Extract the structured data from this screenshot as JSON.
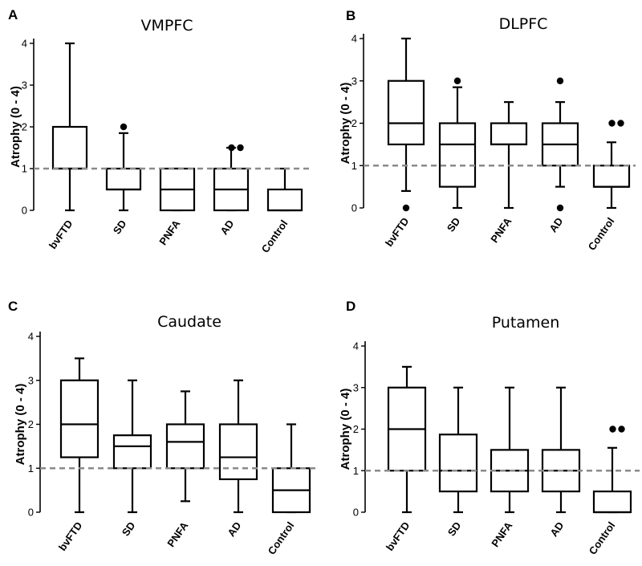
{
  "chart_data": [
    {
      "type": "box",
      "panel_label": "A",
      "title": "VMPFC",
      "ylabel": "Atrophy (0 - 4)",
      "ylim": [
        0,
        4
      ],
      "yticks": [
        "0",
        "1",
        "2",
        "3",
        "4"
      ],
      "reference_line": 1,
      "categories": [
        "bvFTD",
        "SD",
        "PNFA",
        "AD",
        "Control"
      ],
      "boxes": [
        {
          "min": 0,
          "q1": 1,
          "median": 1,
          "q3": 2,
          "max": 4,
          "outliers": []
        },
        {
          "min": 0,
          "q1": 0.5,
          "median": 0.5,
          "q3": 1,
          "max": 1.85,
          "outliers": [
            2
          ]
        },
        {
          "min": 0,
          "q1": 0,
          "median": 0.5,
          "q3": 1,
          "max": 1,
          "outliers": []
        },
        {
          "min": 0,
          "q1": 0,
          "median": 0.5,
          "q3": 1,
          "max": 1.5,
          "outliers": [
            1.5,
            1.5
          ]
        },
        {
          "min": 0,
          "q1": 0,
          "median": 0,
          "q3": 0.5,
          "max": 1,
          "outliers": []
        }
      ]
    },
    {
      "type": "box",
      "panel_label": "B",
      "title": "DLPFC",
      "ylabel": "Atrophy (0 - 4)",
      "ylim": [
        0,
        4
      ],
      "yticks": [
        "0",
        "1",
        "2",
        "3",
        "4"
      ],
      "reference_line": 1,
      "categories": [
        "bvFTD",
        "SD",
        "PNFA",
        "AD",
        "Control"
      ],
      "boxes": [
        {
          "min": 0.4,
          "q1": 1.5,
          "median": 2,
          "q3": 3,
          "max": 4,
          "outliers": [
            0
          ]
        },
        {
          "min": 0,
          "q1": 0.5,
          "median": 1.5,
          "q3": 2,
          "max": 2.85,
          "outliers": [
            3
          ]
        },
        {
          "min": 0,
          "q1": 1.5,
          "median": 1.5,
          "q3": 2,
          "max": 2.5,
          "outliers": []
        },
        {
          "min": 0.5,
          "q1": 1,
          "median": 1.5,
          "q3": 2,
          "max": 2.5,
          "outliers": [
            3,
            0
          ]
        },
        {
          "min": 0,
          "q1": 0.5,
          "median": 0.5,
          "q3": 1,
          "max": 1.55,
          "outliers": [
            2,
            2
          ]
        }
      ]
    },
    {
      "type": "box",
      "panel_label": "C",
      "title": "Caudate",
      "ylabel": "Atrophy (0 - 4)",
      "ylim": [
        0,
        4
      ],
      "yticks": [
        "0",
        "1",
        "2",
        "3",
        "4"
      ],
      "reference_line": 1,
      "categories": [
        "bvFTD",
        "SD",
        "PNFA",
        "AD",
        "Control"
      ],
      "boxes": [
        {
          "min": 0,
          "q1": 1.25,
          "median": 2,
          "q3": 3,
          "max": 3.5,
          "outliers": []
        },
        {
          "min": 0,
          "q1": 1,
          "median": 1.5,
          "q3": 1.75,
          "max": 3,
          "outliers": []
        },
        {
          "min": 0.25,
          "q1": 1,
          "median": 1.6,
          "q3": 2,
          "max": 2.75,
          "outliers": []
        },
        {
          "min": 0,
          "q1": 0.75,
          "median": 1.25,
          "q3": 2,
          "max": 3,
          "outliers": []
        },
        {
          "min": 0,
          "q1": 0,
          "median": 0.5,
          "q3": 1,
          "max": 2,
          "outliers": []
        }
      ]
    },
    {
      "type": "box",
      "panel_label": "D",
      "title": "Putamen",
      "ylabel": "Atrophy (0 - 4)",
      "ylim": [
        0,
        4
      ],
      "yticks": [
        "0",
        "1",
        "2",
        "3",
        "4"
      ],
      "reference_line": 1,
      "categories": [
        "bvFTD",
        "SD",
        "PNFA",
        "AD",
        "Control"
      ],
      "boxes": [
        {
          "min": 0,
          "q1": 1,
          "median": 2,
          "q3": 3,
          "max": 3.5,
          "outliers": []
        },
        {
          "min": 0,
          "q1": 0.5,
          "median": 1,
          "q3": 1.87,
          "max": 3,
          "outliers": []
        },
        {
          "min": 0,
          "q1": 0.5,
          "median": 1,
          "q3": 1.5,
          "max": 3,
          "outliers": []
        },
        {
          "min": 0,
          "q1": 0.5,
          "median": 1,
          "q3": 1.5,
          "max": 3,
          "outliers": []
        },
        {
          "min": 0,
          "q1": 0,
          "median": 0,
          "q3": 0.5,
          "max": 1.55,
          "outliers": [
            2,
            2
          ]
        }
      ]
    }
  ]
}
